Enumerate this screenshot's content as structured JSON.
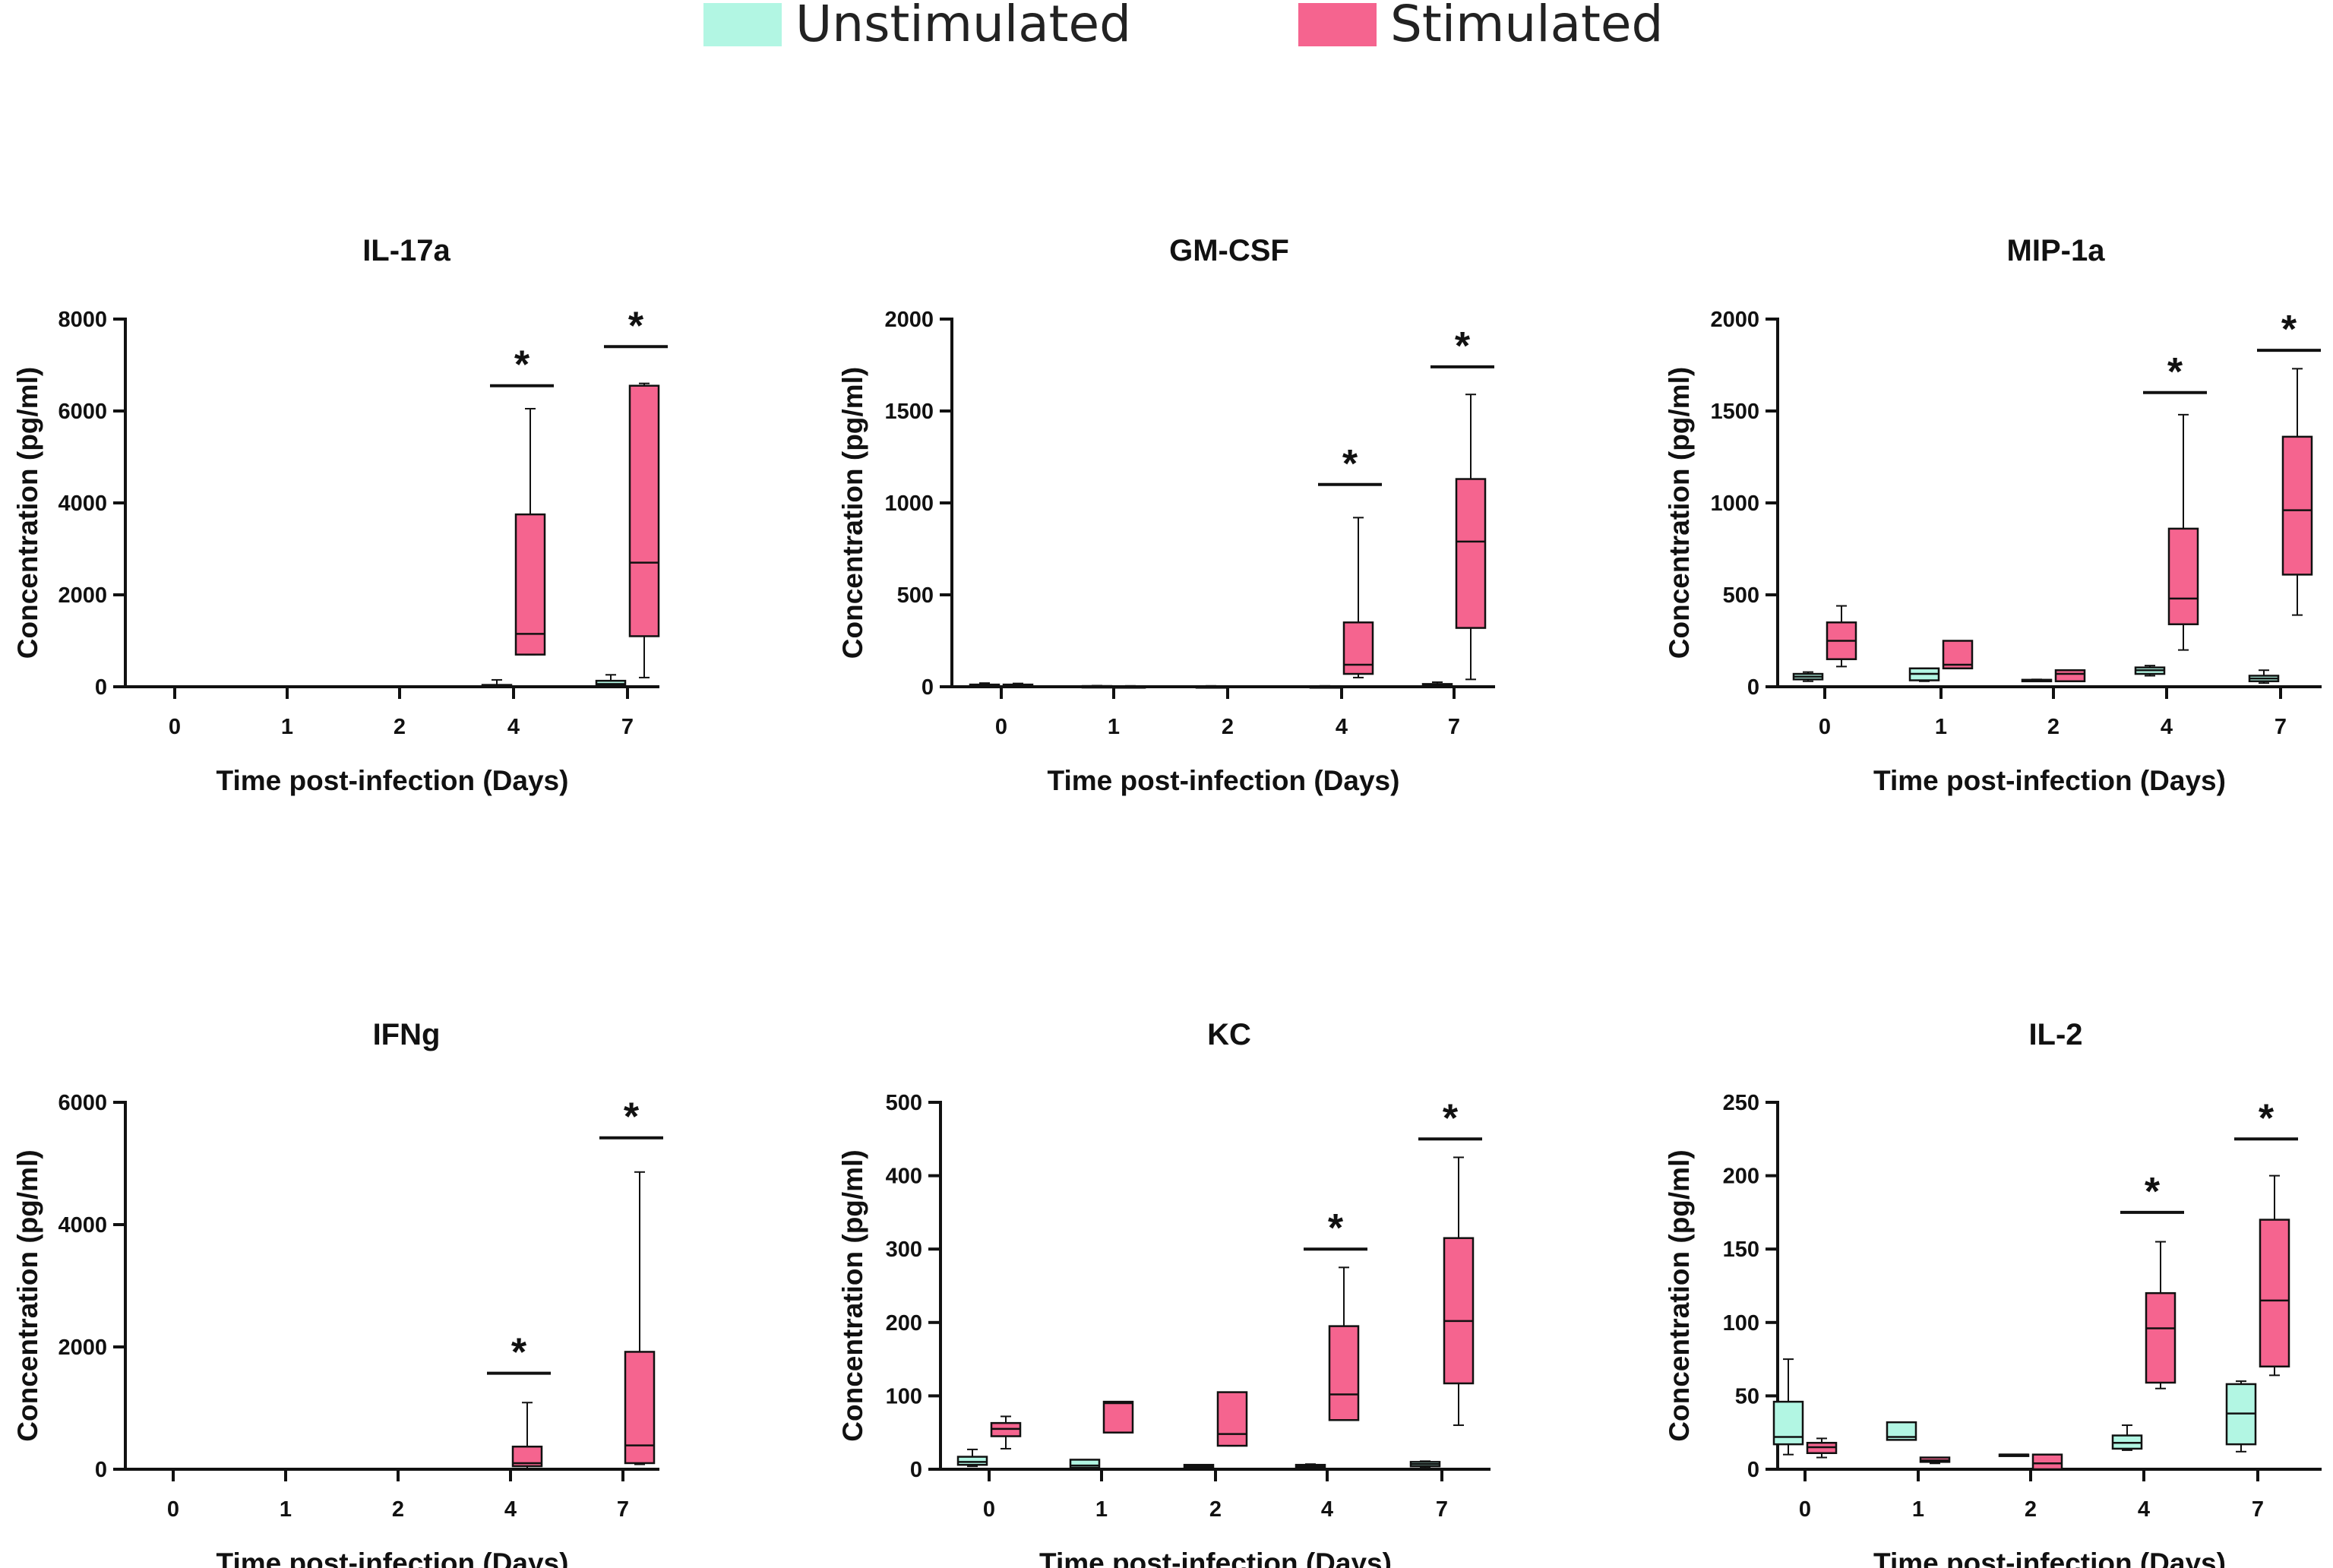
{
  "legend": {
    "unstimulated": {
      "label": "Unstimulated",
      "color": "#b2f6e3"
    },
    "stimulated": {
      "label": "Stimulated",
      "color": "#f5648f"
    }
  },
  "chart_data": [
    {
      "type": "box",
      "title": "IL-17a",
      "xlabel": "Time post-infection (Days)",
      "ylabel": "Concentration (pg/ml)",
      "ylim": [
        0,
        8000
      ],
      "yticks": [
        0,
        2000,
        4000,
        6000,
        8000
      ],
      "categories": [
        "0",
        "1",
        "2",
        "4",
        "7"
      ],
      "series": [
        {
          "name": "Unstimulated",
          "boxes": [
            null,
            null,
            null,
            {
              "min": 0,
              "q1": 10,
              "median": 20,
              "q3": 40,
              "max": 150
            },
            {
              "min": 0,
              "q1": 30,
              "median": 60,
              "q3": 130,
              "max": 260
            }
          ]
        },
        {
          "name": "Stimulated",
          "boxes": [
            null,
            null,
            null,
            {
              "min": 700,
              "q1": 700,
              "median": 1150,
              "q3": 3750,
              "max": 6050
            },
            {
              "min": 200,
              "q1": 1100,
              "median": 2700,
              "q3": 6550,
              "max": 6600
            }
          ]
        }
      ],
      "significance": [
        {
          "category": "4",
          "y": 6550,
          "label": "*"
        },
        {
          "category": "7",
          "y": 7400,
          "label": "*"
        }
      ]
    },
    {
      "type": "box",
      "title": "GM-CSF",
      "xlabel": "Time post-infection (Days)",
      "ylabel": "Concentration (pg/ml)",
      "ylim": [
        0,
        2000
      ],
      "yticks": [
        0,
        500,
        1000,
        1500,
        2000
      ],
      "categories": [
        "0",
        "1",
        "2",
        "4",
        "7"
      ],
      "series": [
        {
          "name": "Unstimulated",
          "boxes": [
            {
              "min": 0,
              "q1": 3,
              "median": 6,
              "q3": 12,
              "max": 20
            },
            {
              "min": 0,
              "q1": 1,
              "median": 2,
              "q3": 4,
              "max": 6
            },
            {
              "min": 0,
              "q1": 1,
              "median": 2,
              "q3": 3,
              "max": 5
            },
            {
              "min": 0,
              "q1": 1,
              "median": 2,
              "q3": 3,
              "max": 5
            },
            {
              "min": 0,
              "q1": 3,
              "median": 8,
              "q3": 15,
              "max": 25
            }
          ]
        },
        {
          "name": "Stimulated",
          "boxes": [
            {
              "min": 0,
              "q1": 3,
              "median": 6,
              "q3": 12,
              "max": 18
            },
            {
              "min": 0,
              "q1": 1,
              "median": 2,
              "q3": 3,
              "max": 5
            },
            null,
            {
              "min": 50,
              "q1": 70,
              "median": 120,
              "q3": 350,
              "max": 920
            },
            {
              "min": 40,
              "q1": 320,
              "median": 790,
              "q3": 1130,
              "max": 1590
            }
          ]
        }
      ],
      "significance": [
        {
          "category": "4",
          "y": 1100,
          "label": "*"
        },
        {
          "category": "7",
          "y": 1740,
          "label": "*"
        }
      ]
    },
    {
      "type": "box",
      "title": "MIP-1a",
      "xlabel": "Time post-infection (Days)",
      "ylabel": "Concentration (pg/ml)",
      "ylim": [
        0,
        2000
      ],
      "yticks": [
        0,
        500,
        1000,
        1500,
        2000
      ],
      "categories": [
        "0",
        "1",
        "2",
        "4",
        "7"
      ],
      "series": [
        {
          "name": "Unstimulated",
          "boxes": [
            {
              "min": 30,
              "q1": 40,
              "median": 55,
              "q3": 70,
              "max": 80
            },
            {
              "min": 30,
              "q1": 35,
              "median": 70,
              "q3": 100,
              "max": 100
            },
            {
              "min": 30,
              "q1": 32,
              "median": 35,
              "q3": 38,
              "max": 40
            },
            {
              "min": 60,
              "q1": 70,
              "median": 90,
              "q3": 105,
              "max": 115
            },
            {
              "min": 20,
              "q1": 30,
              "median": 45,
              "q3": 60,
              "max": 90
            }
          ]
        },
        {
          "name": "Stimulated",
          "boxes": [
            {
              "min": 110,
              "q1": 150,
              "median": 250,
              "q3": 350,
              "max": 440
            },
            {
              "min": 100,
              "q1": 100,
              "median": 120,
              "q3": 250,
              "max": 250
            },
            {
              "min": 30,
              "q1": 30,
              "median": 70,
              "q3": 90,
              "max": 90
            },
            {
              "min": 200,
              "q1": 340,
              "median": 480,
              "q3": 860,
              "max": 1480
            },
            {
              "min": 390,
              "q1": 610,
              "median": 960,
              "q3": 1360,
              "max": 1730
            }
          ]
        }
      ],
      "significance": [
        {
          "category": "4",
          "y": 1600,
          "label": "*"
        },
        {
          "category": "7",
          "y": 1830,
          "label": "*"
        }
      ]
    },
    {
      "type": "box",
      "title": "IFNg",
      "xlabel": "Time post-infection (Days)",
      "ylabel": "Concentration (pg/ml)",
      "ylim": [
        0,
        6000
      ],
      "yticks": [
        0,
        2000,
        4000,
        6000
      ],
      "categories": [
        "0",
        "1",
        "2",
        "4",
        "7"
      ],
      "series": [
        {
          "name": "Unstimulated",
          "boxes": [
            null,
            null,
            null,
            null,
            null
          ]
        },
        {
          "name": "Stimulated",
          "boxes": [
            null,
            null,
            null,
            {
              "min": 0,
              "q1": 50,
              "median": 100,
              "q3": 370,
              "max": 1090
            },
            {
              "min": 80,
              "q1": 100,
              "median": 390,
              "q3": 1920,
              "max": 4860
            }
          ]
        }
      ],
      "significance": [
        {
          "category": "4",
          "y": 1570,
          "label": "*"
        },
        {
          "category": "7",
          "y": 5420,
          "label": "*"
        }
      ]
    },
    {
      "type": "box",
      "title": "KC",
      "xlabel": "Time post-infection (Days)",
      "ylabel": "Concentration (pg/ml)",
      "ylim": [
        0,
        500
      ],
      "yticks": [
        0,
        100,
        200,
        300,
        400,
        500
      ],
      "categories": [
        "0",
        "1",
        "2",
        "4",
        "7"
      ],
      "series": [
        {
          "name": "Unstimulated",
          "boxes": [
            {
              "min": 4,
              "q1": 6,
              "median": 10,
              "q3": 17,
              "max": 27
            },
            {
              "min": 1,
              "q1": 2,
              "median": 5,
              "q3": 13,
              "max": 13
            },
            {
              "min": 2,
              "q1": 2,
              "median": 4,
              "q3": 6,
              "max": 6
            },
            {
              "min": 2,
              "q1": 3,
              "median": 4,
              "q3": 6,
              "max": 7
            },
            {
              "min": 2,
              "q1": 4,
              "median": 7,
              "q3": 10,
              "max": 11
            }
          ]
        },
        {
          "name": "Stimulated",
          "boxes": [
            {
              "min": 28,
              "q1": 45,
              "median": 55,
              "q3": 63,
              "max": 72
            },
            {
              "min": 50,
              "q1": 50,
              "median": 90,
              "q3": 92,
              "max": 92
            },
            {
              "min": 32,
              "q1": 32,
              "median": 48,
              "q3": 105,
              "max": 105
            },
            {
              "min": 67,
              "q1": 67,
              "median": 102,
              "q3": 195,
              "max": 275
            },
            {
              "min": 60,
              "q1": 117,
              "median": 202,
              "q3": 315,
              "max": 425
            }
          ]
        }
      ],
      "significance": [
        {
          "category": "4",
          "y": 300,
          "label": "*"
        },
        {
          "category": "7",
          "y": 450,
          "label": "*"
        }
      ]
    },
    {
      "type": "box",
      "title": "IL-2",
      "xlabel": "Time post-infection (Days)",
      "ylabel": "Concentration (pg/ml)",
      "ylim": [
        0,
        250
      ],
      "yticks": [
        0,
        50,
        100,
        150,
        200,
        250
      ],
      "categories": [
        "0",
        "1",
        "2",
        "4",
        "7"
      ],
      "series": [
        {
          "name": "Unstimulated",
          "boxes": [
            {
              "min": 10,
              "q1": 17,
              "median": 22,
              "q3": 46,
              "max": 75
            },
            {
              "min": 20,
              "q1": 20,
              "median": 22,
              "q3": 32,
              "max": 32
            },
            {
              "min": 10,
              "q1": 10,
              "median": 10,
              "q3": 10,
              "max": 10
            },
            {
              "min": 13,
              "q1": 14,
              "median": 18,
              "q3": 23,
              "max": 30
            },
            {
              "min": 12,
              "q1": 17,
              "median": 38,
              "q3": 58,
              "max": 60
            }
          ]
        },
        {
          "name": "Stimulated",
          "boxes": [
            {
              "min": 8,
              "q1": 11,
              "median": 15,
              "q3": 18,
              "max": 21
            },
            {
              "min": 4,
              "q1": 5,
              "median": 6,
              "q3": 8,
              "max": 8
            },
            {
              "min": 0,
              "q1": 0,
              "median": 4,
              "q3": 10,
              "max": 10
            },
            {
              "min": 55,
              "q1": 59,
              "median": 96,
              "q3": 120,
              "max": 155
            },
            {
              "min": 64,
              "q1": 70,
              "median": 115,
              "q3": 170,
              "max": 200
            }
          ]
        }
      ],
      "significance": [
        {
          "category": "4",
          "y": 175,
          "label": "*"
        },
        {
          "category": "7",
          "y": 225,
          "label": "*"
        }
      ]
    }
  ]
}
